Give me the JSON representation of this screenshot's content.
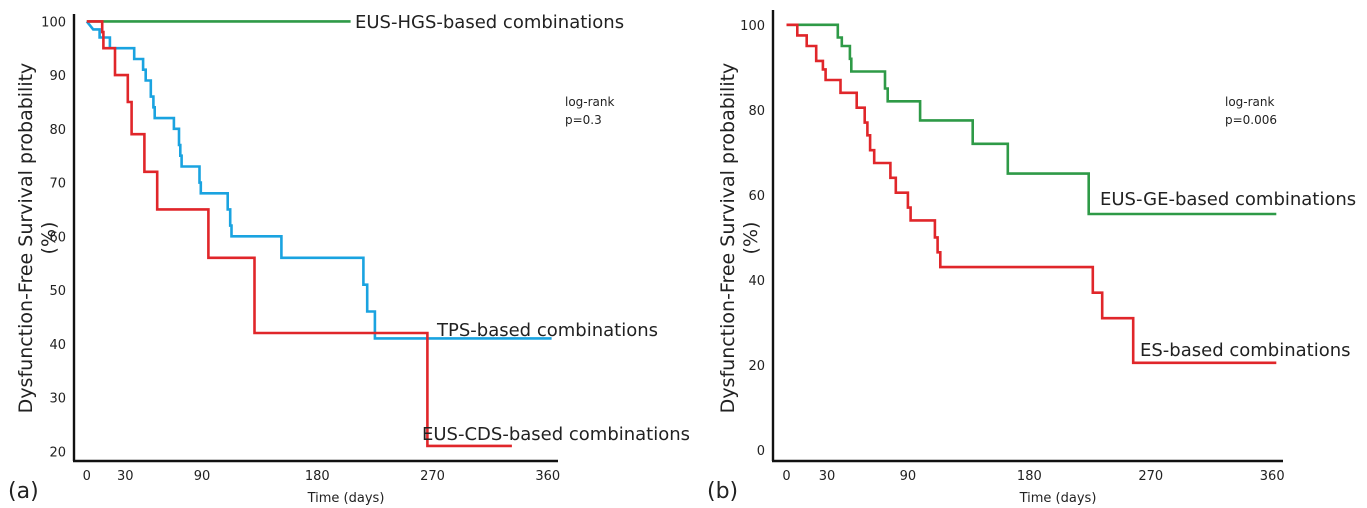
{
  "chart_data": [
    {
      "type": "line",
      "panel_label": "(a)",
      "title": "",
      "xlabel": "Time (days)",
      "ylabel": "Dysfunction-Free Survival probability",
      "ylabel2": "(%)",
      "xlim": [
        -10,
        368
      ],
      "ylim": [
        18,
        101
      ],
      "xticks": [
        0,
        30,
        90,
        180,
        270,
        360
      ],
      "yticks": [
        20,
        30,
        40,
        50,
        60,
        70,
        80,
        90,
        100
      ],
      "grid": false,
      "annotation": [
        "log-rank",
        "p=0.3"
      ],
      "series": [
        {
          "name": "EUS-HGS-based combinations",
          "color": "#2e9a47",
          "points": [
            [
              0,
              100
            ],
            [
              206,
              100
            ]
          ]
        },
        {
          "name": "TPS-based combinations",
          "color": "#1aa3e0",
          "points": [
            [
              0,
              100
            ],
            [
              5,
              98.5
            ],
            [
              10,
              98.5
            ],
            [
              10,
              97
            ],
            [
              18,
              97
            ],
            [
              18,
              95
            ],
            [
              37,
              95
            ],
            [
              37,
              93
            ],
            [
              44,
              93
            ],
            [
              44,
              91
            ],
            [
              46,
              91
            ],
            [
              46,
              89
            ],
            [
              50,
              89
            ],
            [
              50,
              86
            ],
            [
              52,
              86
            ],
            [
              52,
              84
            ],
            [
              53,
              84
            ],
            [
              53,
              82
            ],
            [
              68,
              82
            ],
            [
              68,
              80
            ],
            [
              72,
              80
            ],
            [
              72,
              77
            ],
            [
              73,
              77
            ],
            [
              73,
              75
            ],
            [
              74,
              75
            ],
            [
              74,
              73
            ],
            [
              88,
              73
            ],
            [
              88,
              70
            ],
            [
              89,
              70
            ],
            [
              89,
              68
            ],
            [
              110,
              68
            ],
            [
              110,
              65
            ],
            [
              112,
              65
            ],
            [
              112,
              62
            ],
            [
              113,
              62
            ],
            [
              113,
              60
            ],
            [
              152,
              60
            ],
            [
              152,
              56
            ],
            [
              216,
              56
            ],
            [
              216,
              51
            ],
            [
              219,
              51
            ],
            [
              219,
              46
            ],
            [
              225,
              46
            ],
            [
              225,
              41
            ],
            [
              363,
              41
            ]
          ]
        },
        {
          "name": "EUS-CDS-based combinations",
          "color": "#e0262a",
          "points": [
            [
              0,
              100
            ],
            [
              12,
              100
            ],
            [
              12,
              98
            ],
            [
              13,
              98
            ],
            [
              13,
              95
            ],
            [
              22,
              95
            ],
            [
              22,
              90
            ],
            [
              32,
              90
            ],
            [
              32,
              85
            ],
            [
              35,
              85
            ],
            [
              35,
              79
            ],
            [
              45,
              79
            ],
            [
              45,
              72
            ],
            [
              55,
              72
            ],
            [
              55,
              65
            ],
            [
              95,
              65
            ],
            [
              95,
              56
            ],
            [
              131,
              56
            ],
            [
              131,
              42
            ],
            [
              266,
              42
            ],
            [
              266,
              21
            ],
            [
              332,
              21
            ]
          ]
        }
      ]
    },
    {
      "type": "line",
      "panel_label": "(b)",
      "title": "",
      "xlabel": "Time (days)",
      "ylabel": "Dysfunction-Free Survival probability",
      "ylabel2": "(%)",
      "xlim": [
        -10,
        368
      ],
      "ylim": [
        -4,
        103
      ],
      "xticks": [
        0,
        30,
        90,
        180,
        270,
        360
      ],
      "yticks": [
        0,
        20,
        40,
        60,
        80,
        100
      ],
      "grid": false,
      "annotation": [
        "log-rank",
        "p=0.006"
      ],
      "series": [
        {
          "name": "EUS-GE-based combinations",
          "color": "#2e9a47",
          "points": [
            [
              0,
              100
            ],
            [
              38,
              100
            ],
            [
              38,
              97
            ],
            [
              41,
              97
            ],
            [
              41,
              95
            ],
            [
              47,
              95
            ],
            [
              47,
              92
            ],
            [
              48,
              92
            ],
            [
              48,
              89
            ],
            [
              73,
              89
            ],
            [
              73,
              85
            ],
            [
              75,
              85
            ],
            [
              75,
              82
            ],
            [
              99,
              82
            ],
            [
              99,
              77.5
            ],
            [
              138,
              77.5
            ],
            [
              138,
              72
            ],
            [
              164,
              72
            ],
            [
              164,
              65
            ],
            [
              224,
              65
            ],
            [
              224,
              55.5
            ],
            [
              363,
              55.5
            ]
          ]
        },
        {
          "name": "ES-based combinations",
          "color": "#e0262a",
          "points": [
            [
              0,
              100
            ],
            [
              8,
              100
            ],
            [
              8,
              97.5
            ],
            [
              15,
              97.5
            ],
            [
              15,
              95
            ],
            [
              22,
              95
            ],
            [
              22,
              91.5
            ],
            [
              27,
              91.5
            ],
            [
              27,
              89.5
            ],
            [
              29,
              89.5
            ],
            [
              29,
              87
            ],
            [
              40,
              87
            ],
            [
              40,
              84
            ],
            [
              52,
              84
            ],
            [
              52,
              80.5
            ],
            [
              58,
              80.5
            ],
            [
              58,
              77
            ],
            [
              60,
              77
            ],
            [
              60,
              74
            ],
            [
              62,
              74
            ],
            [
              62,
              70.5
            ],
            [
              65,
              70.5
            ],
            [
              65,
              67.5
            ],
            [
              77,
              67.5
            ],
            [
              77,
              64
            ],
            [
              81,
              64
            ],
            [
              81,
              60.5
            ],
            [
              90,
              60.5
            ],
            [
              90,
              57
            ],
            [
              92,
              57
            ],
            [
              92,
              54
            ],
            [
              110,
              54
            ],
            [
              110,
              50
            ],
            [
              112,
              50
            ],
            [
              112,
              46.5
            ],
            [
              114,
              46.5
            ],
            [
              114,
              43
            ],
            [
              227,
              43
            ],
            [
              227,
              37
            ],
            [
              234,
              37
            ],
            [
              234,
              31
            ],
            [
              257,
              31
            ],
            [
              257,
              20.5
            ],
            [
              363,
              20.5
            ]
          ]
        }
      ]
    }
  ]
}
